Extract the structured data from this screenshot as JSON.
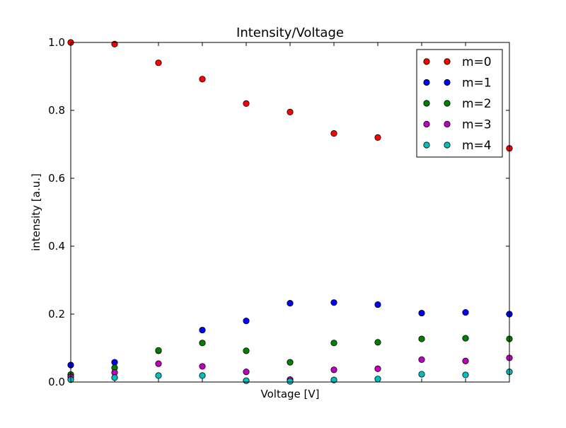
{
  "chart_data": {
    "type": "scatter",
    "title": "Intensity/Voltage",
    "xlabel": "Voltage [V]",
    "ylabel": "intensity [a.u.]",
    "x": [
      0,
      1,
      2,
      3,
      4,
      5,
      6,
      7,
      8,
      9,
      10
    ],
    "xlim": [
      0,
      10
    ],
    "ylim": [
      0.0,
      1.0
    ],
    "yticks": [
      "0.0",
      "0.2",
      "0.4",
      "0.6",
      "0.8",
      "1.0"
    ],
    "x_tick_labels_shown": false,
    "grid": false,
    "legend_position": "top-right",
    "series": [
      {
        "name": "m=0",
        "color": "#ff0000",
        "values": [
          1.0,
          0.995,
          0.94,
          0.892,
          0.82,
          0.795,
          0.732,
          0.72,
          0.707,
          0.705,
          0.688
        ]
      },
      {
        "name": "m=1",
        "color": "#0000ff",
        "values": [
          0.05,
          0.058,
          0.092,
          0.153,
          0.18,
          0.232,
          0.234,
          0.228,
          0.203,
          0.205,
          0.2
        ]
      },
      {
        "name": "m=2",
        "color": "#008000",
        "values": [
          0.022,
          0.042,
          0.093,
          0.115,
          0.092,
          0.058,
          0.115,
          0.117,
          0.127,
          0.129,
          0.127
        ]
      },
      {
        "name": "m=3",
        "color": "#bf00bf",
        "values": [
          0.015,
          0.028,
          0.054,
          0.046,
          0.03,
          0.007,
          0.036,
          0.039,
          0.066,
          0.062,
          0.071
        ]
      },
      {
        "name": "m=4",
        "color": "#00bfbf",
        "values": [
          0.007,
          0.013,
          0.019,
          0.019,
          0.004,
          0.002,
          0.006,
          0.009,
          0.023,
          0.021,
          0.03
        ]
      }
    ]
  }
}
